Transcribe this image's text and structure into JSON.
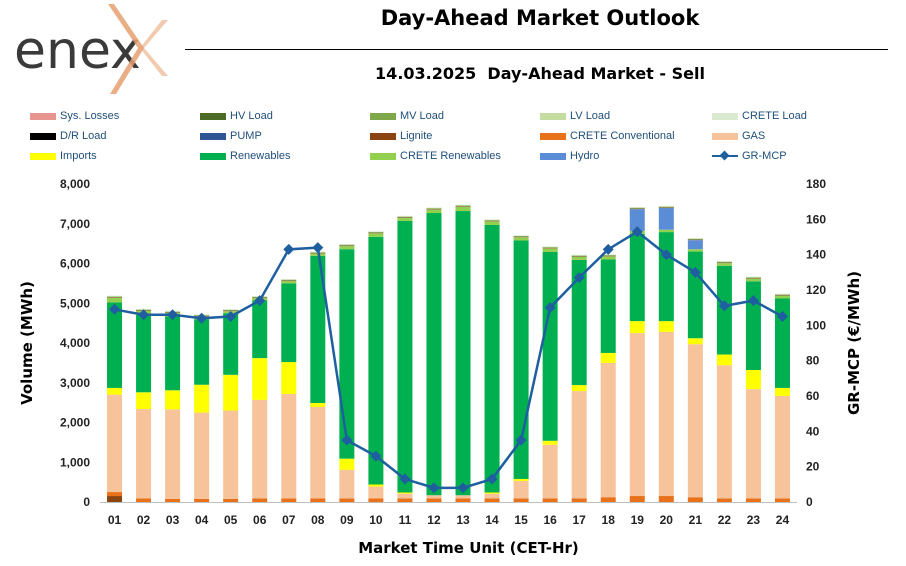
{
  "header": {
    "logo_text": "enex",
    "title": "Day-Ahead Market Outlook",
    "subtitle": "14.03.2025  Day-Ahead Market - Sell"
  },
  "legend": [
    {
      "label": "Sys. Losses",
      "color": "#e6958f"
    },
    {
      "label": "HV Load",
      "color": "#4b6b26"
    },
    {
      "label": "MV Load",
      "color": "#7fa84a"
    },
    {
      "label": "LV Load",
      "color": "#c4dc9f"
    },
    {
      "label": "CRETE Load",
      "color": "#d9ead1"
    },
    {
      "label": "D/R Load",
      "color": "#000000"
    },
    {
      "label": "PUMP",
      "color": "#2e5694"
    },
    {
      "label": "Lignite",
      "color": "#8b4513"
    },
    {
      "label": "CRETE Conventional",
      "color": "#e8711a"
    },
    {
      "label": "GAS",
      "color": "#f6c39a"
    },
    {
      "label": "Imports",
      "color": "#ffff00"
    },
    {
      "label": "Renewables",
      "color": "#00b050"
    },
    {
      "label": "CRETE Renewables",
      "color": "#92d050"
    },
    {
      "label": "Hydro",
      "color": "#5b8dd6"
    },
    {
      "label": "GR-MCP",
      "color": "#1f5fa0",
      "line": true
    }
  ],
  "chart_data": {
    "type": "bar",
    "stacked": true,
    "title": "",
    "xlabel": "Market Time Unit (CET-Hr)",
    "ylabel": "Volume (MWh)",
    "y2label": "GR-MCP (€/MWh)",
    "ylim": [
      0,
      8000
    ],
    "y2lim": [
      0,
      180
    ],
    "yticks": [
      "0",
      "1,000",
      "2,000",
      "3,000",
      "4,000",
      "5,000",
      "6,000",
      "7,000",
      "8,000"
    ],
    "y2ticks": [
      "0",
      "20",
      "40",
      "60",
      "80",
      "100",
      "120",
      "140",
      "160",
      "180"
    ],
    "categories": [
      "01",
      "02",
      "03",
      "04",
      "05",
      "06",
      "07",
      "08",
      "09",
      "10",
      "11",
      "12",
      "13",
      "14",
      "15",
      "16",
      "17",
      "18",
      "19",
      "20",
      "21",
      "22",
      "23",
      "24"
    ],
    "series": [
      {
        "name": "Lignite",
        "color": "#8b4513",
        "values": [
          150,
          0,
          0,
          0,
          0,
          0,
          0,
          0,
          0,
          0,
          0,
          0,
          0,
          0,
          0,
          0,
          0,
          0,
          0,
          0,
          0,
          0,
          0,
          0
        ]
      },
      {
        "name": "CRETE Conventional",
        "color": "#e8711a",
        "values": [
          100,
          90,
          80,
          80,
          80,
          90,
          90,
          90,
          90,
          90,
          90,
          90,
          90,
          90,
          90,
          90,
          90,
          120,
          150,
          150,
          120,
          90,
          90,
          90
        ]
      },
      {
        "name": "GAS",
        "color": "#f6c39a",
        "values": [
          2450,
          2250,
          2250,
          2170,
          2220,
          2480,
          2630,
          2300,
          720,
          300,
          120,
          80,
          80,
          120,
          440,
          1350,
          2700,
          3380,
          4100,
          4130,
          3850,
          3350,
          2750,
          2580
        ]
      },
      {
        "name": "Imports",
        "color": "#ffff00",
        "values": [
          170,
          420,
          480,
          700,
          900,
          1050,
          800,
          100,
          280,
          50,
          30,
          0,
          0,
          30,
          50,
          100,
          150,
          250,
          300,
          270,
          150,
          270,
          480,
          200
        ]
      },
      {
        "name": "Renewables",
        "color": "#00b050",
        "values": [
          2150,
          1950,
          1860,
          1650,
          1550,
          1450,
          1980,
          3700,
          5270,
          6230,
          6830,
          7100,
          7150,
          6730,
          6000,
          4750,
          3150,
          2350,
          2200,
          2240,
          2180,
          2230,
          2230,
          2250
        ]
      },
      {
        "name": "CRETE Renewables",
        "color": "#92d050",
        "values": [
          120,
          100,
          90,
          70,
          50,
          60,
          60,
          60,
          80,
          90,
          80,
          90,
          110,
          90,
          80,
          90,
          80,
          80,
          70,
          60,
          60,
          70,
          70,
          70
        ]
      },
      {
        "name": "Hydro",
        "color": "#5b8dd6",
        "values": [
          0,
          0,
          0,
          0,
          0,
          0,
          0,
          0,
          0,
          0,
          0,
          0,
          0,
          0,
          0,
          0,
          0,
          0,
          550,
          550,
          230,
          0,
          0,
          0
        ]
      },
      {
        "name": "Sys. Losses",
        "color": "#e6958f",
        "values": [
          10,
          10,
          10,
          10,
          10,
          10,
          10,
          10,
          10,
          10,
          10,
          10,
          10,
          10,
          10,
          10,
          10,
          10,
          10,
          10,
          10,
          10,
          10,
          10
        ]
      },
      {
        "name": "HV Load",
        "color": "#4b6b26",
        "values": [
          10,
          10,
          10,
          10,
          10,
          10,
          10,
          10,
          10,
          10,
          10,
          10,
          10,
          10,
          10,
          10,
          10,
          10,
          10,
          10,
          10,
          10,
          10,
          10
        ]
      },
      {
        "name": "MV Load",
        "color": "#7fa84a",
        "values": [
          10,
          10,
          10,
          10,
          10,
          10,
          10,
          10,
          10,
          10,
          10,
          10,
          10,
          10,
          10,
          10,
          10,
          10,
          10,
          10,
          10,
          10,
          10,
          10
        ]
      },
      {
        "name": "LV Load",
        "color": "#c4dc9f",
        "values": [
          10,
          10,
          10,
          10,
          10,
          10,
          10,
          10,
          10,
          10,
          10,
          10,
          10,
          10,
          10,
          10,
          10,
          10,
          10,
          10,
          10,
          10,
          10,
          10
        ]
      },
      {
        "name": "CRETE Load",
        "color": "#d9ead1",
        "values": [
          10,
          10,
          10,
          10,
          10,
          10,
          10,
          10,
          10,
          10,
          10,
          10,
          10,
          10,
          10,
          10,
          10,
          10,
          10,
          10,
          10,
          10,
          10,
          10
        ]
      }
    ],
    "line_series": {
      "name": "GR-MCP",
      "color": "#1f5fa0",
      "axis": "right",
      "values": [
        109,
        106,
        106,
        104,
        105,
        114,
        143,
        144,
        35,
        26,
        13,
        8,
        8,
        13,
        35,
        110,
        127,
        143,
        153,
        140,
        130,
        111,
        114,
        105
      ]
    }
  }
}
